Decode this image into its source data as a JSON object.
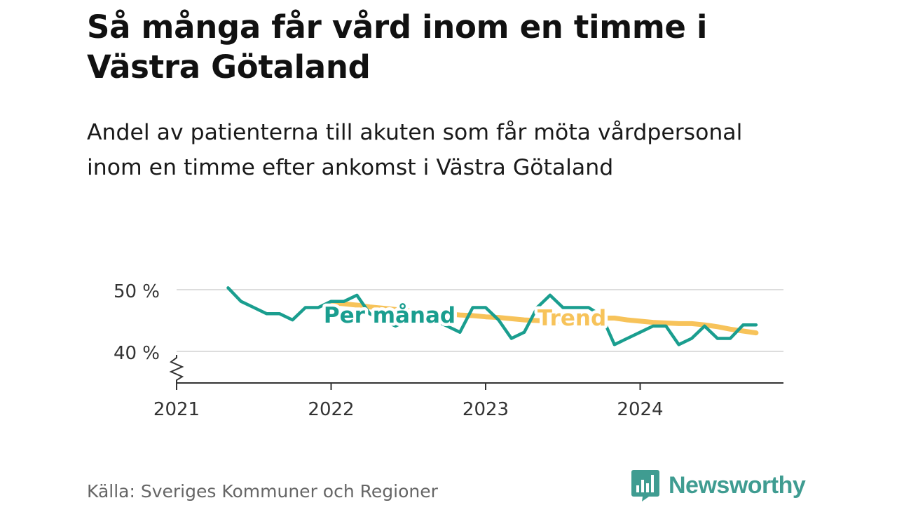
{
  "header": {
    "title": "Så många får vård inom en timme i Västra Götaland",
    "subtitle": "Andel av patienterna till akuten som får möta vårdpersonal inom en timme efter ankomst i Västra Götaland"
  },
  "footer": {
    "source": "Källa: Sveriges Kommuner och Regioner",
    "brand": "Newsworthy"
  },
  "icons": {
    "logo": "bar-chart-speech-bubble-icon",
    "axis_break": "zigzag-axis-break-icon"
  },
  "colors": {
    "monthly": "#1a9e8f",
    "trend": "#f7c35a",
    "grid": "#dddddd",
    "axis": "#333333",
    "brand": "#3f9c91"
  },
  "chart_data": {
    "type": "line",
    "x_unit": "months",
    "ylim": [
      35,
      50
    ],
    "y_ticks": [
      40,
      50
    ],
    "y_tick_labels": [
      "40 %",
      "50 %"
    ],
    "x_ticks": [
      "2021-01",
      "2022-01",
      "2023-01",
      "2024-01"
    ],
    "x_tick_labels": [
      "2021",
      "2022",
      "2023",
      "2024"
    ],
    "grid": true,
    "series": [
      {
        "name": "Per månad",
        "x": [
          "2021-05",
          "2021-06",
          "2021-07",
          "2021-08",
          "2021-09",
          "2021-10",
          "2021-11",
          "2021-12",
          "2022-01",
          "2022-02",
          "2022-03",
          "2022-04",
          "2022-05",
          "2022-06",
          "2022-07",
          "2022-08",
          "2022-09",
          "2022-10",
          "2022-11",
          "2022-12",
          "2023-01",
          "2023-02",
          "2023-03",
          "2023-04",
          "2023-05",
          "2023-06",
          "2023-07",
          "2023-08",
          "2023-09",
          "2023-10",
          "2023-11",
          "2023-12",
          "2024-01",
          "2024-02",
          "2024-03",
          "2024-04",
          "2024-05",
          "2024-06",
          "2024-07",
          "2024-08",
          "2024-09",
          "2024-10"
        ],
        "values": [
          50.3,
          48.1,
          47.1,
          46.1,
          46.1,
          45.1,
          47.1,
          47.1,
          48.1,
          48.1,
          49.1,
          46.1,
          45.1,
          44.1,
          45.1,
          45.1,
          45.1,
          44.1,
          43.1,
          47.1,
          47.1,
          45.1,
          42.1,
          43.1,
          47.1,
          49.1,
          47.1,
          47.1,
          47.1,
          45.8,
          41.1,
          42.1,
          43.1,
          44.1,
          44.1,
          41.1,
          42.1,
          44.1,
          42.1,
          42.1,
          44.3,
          44.3
        ]
      },
      {
        "name": "Trend",
        "x": [
          "2022-01",
          "2022-02",
          "2022-03",
          "2022-04",
          "2022-05",
          "2022-06",
          "2022-07",
          "2022-08",
          "2022-09",
          "2022-10",
          "2022-11",
          "2022-12",
          "2023-01",
          "2023-02",
          "2023-03",
          "2023-04",
          "2023-05",
          "2023-06",
          "2023-07",
          "2023-08",
          "2023-09",
          "2023-10",
          "2023-11",
          "2023-12",
          "2024-01",
          "2024-02",
          "2024-03",
          "2024-04",
          "2024-05",
          "2024-06",
          "2024-07",
          "2024-08",
          "2024-09",
          "2024-10"
        ],
        "values": [
          47.9,
          47.7,
          47.5,
          47.2,
          47.0,
          46.8,
          46.6,
          46.4,
          46.3,
          46.1,
          45.9,
          45.8,
          45.6,
          45.5,
          45.3,
          45.1,
          45.0,
          44.9,
          44.9,
          45.0,
          45.3,
          45.4,
          45.4,
          45.1,
          44.9,
          44.7,
          44.6,
          44.5,
          44.5,
          44.3,
          44.0,
          43.6,
          43.3,
          43.0
        ]
      }
    ]
  }
}
